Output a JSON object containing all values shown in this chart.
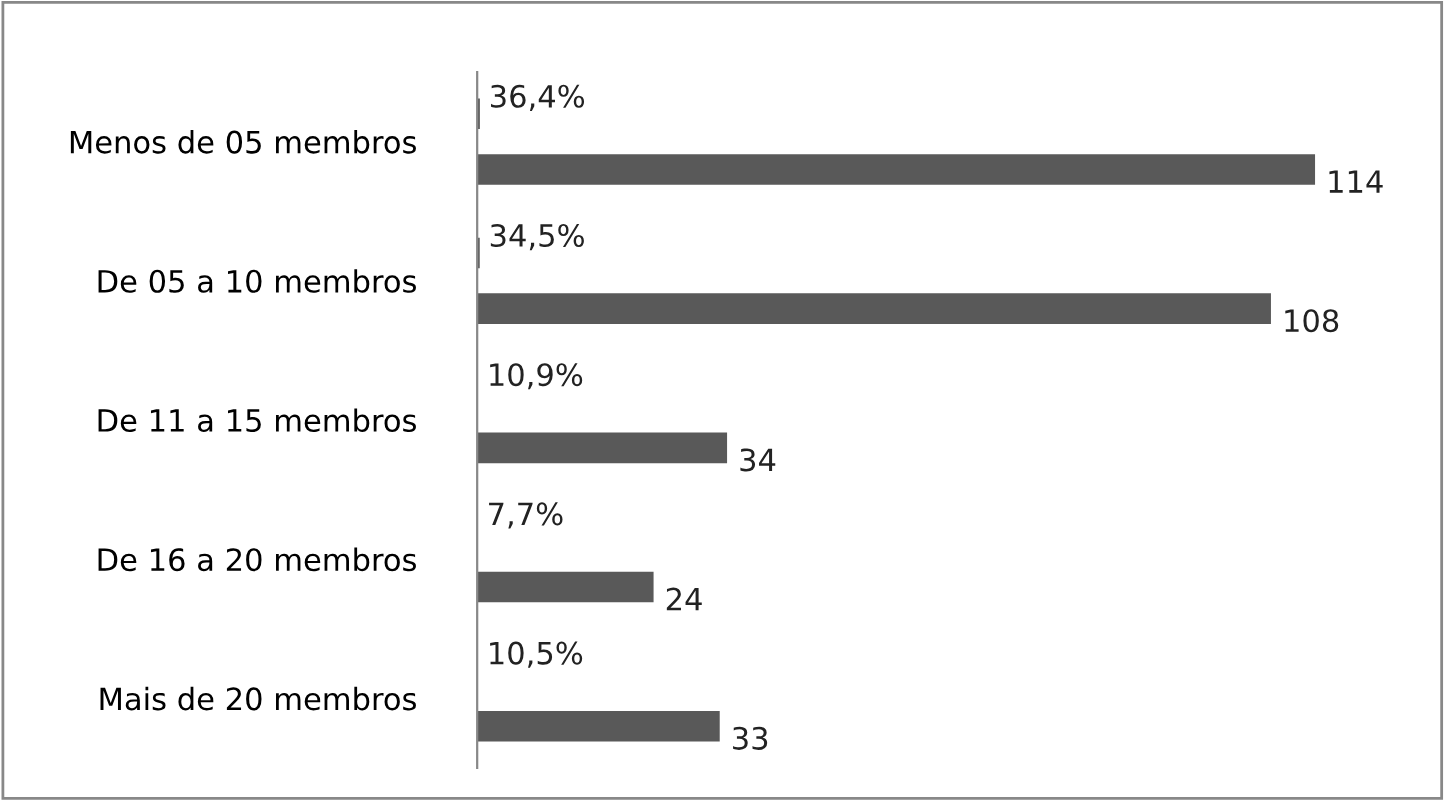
{
  "chart_data": {
    "type": "bar",
    "orientation": "horizontal",
    "categories": [
      "Menos de 05 membros",
      "De 05 a 10 membros",
      "De 11 a 15 membros",
      "De 16 a 20 membros",
      "Mais de 20 membros"
    ],
    "series": [
      {
        "color": "#595959",
        "values": [
          0.364,
          0.345,
          0.109,
          0.077,
          0.105
        ],
        "value_labels": [
          "36,4%",
          "34,5%",
          "10,9%",
          "7,7%",
          "10,5%"
        ]
      },
      {
        "color": "#595959",
        "values": [
          114,
          108,
          34,
          24,
          33
        ],
        "value_labels": [
          "114",
          "108",
          "34",
          "24",
          "33"
        ]
      }
    ],
    "tick_labels": "y",
    "grid": false,
    "legend": false
  }
}
